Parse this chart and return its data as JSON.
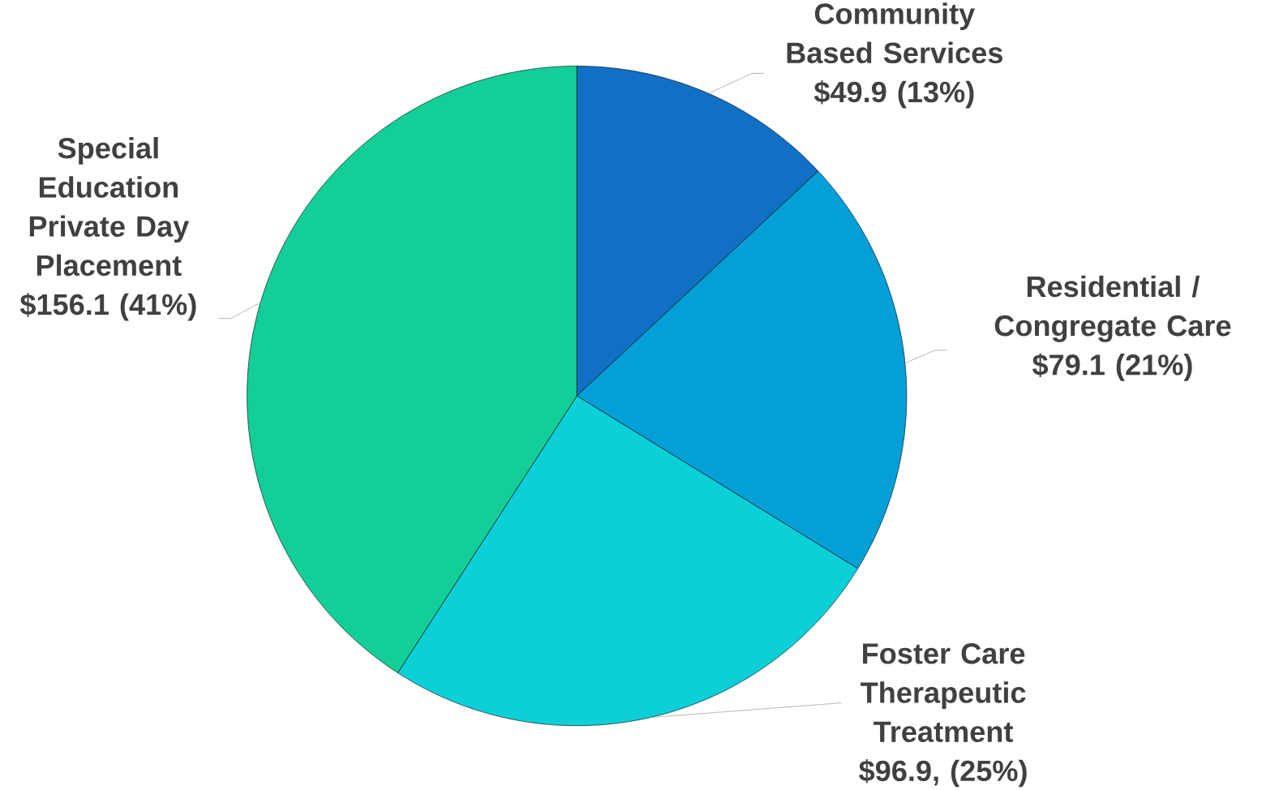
{
  "chart_data": {
    "type": "pie",
    "categories": [
      "Community Based Services",
      "Residential / Congregate Care",
      "Foster Care Therapeutic Treatment",
      "Special Education Private Day Placement"
    ],
    "values": [
      49.9,
      79.1,
      96.9,
      156.1
    ],
    "colors": [
      "#1170c4",
      "#039fd6",
      "#0ccfd8",
      "#13cf97"
    ],
    "value_labels": [
      "$49.9 (13%)",
      "$79.1 (21%)",
      "$96.9, (25%)",
      "$156.1 (41%)"
    ]
  }
}
